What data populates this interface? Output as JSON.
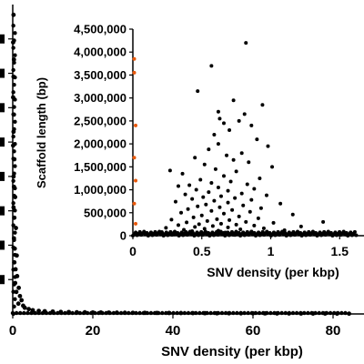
{
  "chart_data": [
    {
      "type": "scatter",
      "panel": "main",
      "xlabel": "SNV density (per kbp)",
      "ylabel": "",
      "xlim": [
        0,
        85
      ],
      "ylim": [
        0,
        4500000
      ],
      "x_ticks": [
        0,
        20,
        40,
        60,
        80
      ],
      "x_tick_labels": [
        "0",
        "20",
        "40",
        "60",
        "80"
      ],
      "grid": false,
      "colors": {
        "points": "#000000"
      },
      "series": [
        {
          "values": [
            [
              0.2,
              4350000
            ],
            [
              0.1,
              3950000
            ],
            [
              0.3,
              3700000
            ],
            [
              0.2,
              3450000
            ],
            [
              0.1,
              3150000
            ],
            [
              0.3,
              2900000
            ],
            [
              0.2,
              2650000
            ],
            [
              0.1,
              2450000
            ],
            [
              0.4,
              2250000
            ],
            [
              0.2,
              2000000
            ],
            [
              0.3,
              1850000
            ],
            [
              0.6,
              1700000
            ],
            [
              0.2,
              1550000
            ],
            [
              0.4,
              1400000
            ],
            [
              0.8,
              1250000
            ],
            [
              0.3,
              1100000
            ],
            [
              0.5,
              950000
            ],
            [
              1.0,
              850000
            ],
            [
              0.4,
              750000
            ],
            [
              0.7,
              650000
            ],
            [
              1.1,
              550000
            ],
            [
              0.6,
              450000
            ],
            [
              1.5,
              380000
            ],
            [
              0.9,
              320000
            ],
            [
              1.8,
              260000
            ],
            [
              2.2,
              200000
            ],
            [
              1.4,
              150000
            ],
            [
              2.6,
              120000
            ],
            [
              3.0,
              90000
            ],
            [
              4.0,
              70000
            ],
            [
              5.0,
              55000
            ],
            [
              6.5,
              45000
            ],
            [
              8.0,
              40000
            ],
            [
              10,
              35000
            ],
            [
              12,
              30000
            ],
            [
              14,
              28000
            ],
            [
              16,
              25000
            ],
            [
              18,
              24000
            ],
            [
              20,
              22000
            ],
            [
              22,
              21000
            ],
            [
              24,
              20000
            ],
            [
              26,
              19000
            ],
            [
              28,
              18000
            ],
            [
              30,
              17000
            ],
            [
              33,
              16000
            ],
            [
              36,
              15000
            ],
            [
              39,
              14000
            ],
            [
              42,
              13000
            ],
            [
              45,
              12000
            ],
            [
              48,
              11000
            ],
            [
              51,
              10000
            ],
            [
              54,
              9500
            ],
            [
              57,
              9000
            ],
            [
              60,
              8500
            ],
            [
              63,
              8000
            ],
            [
              66,
              7500
            ],
            [
              69,
              7000
            ],
            [
              72,
              6500
            ],
            [
              75,
              6000
            ],
            [
              78,
              5500
            ],
            [
              81,
              5000
            ],
            [
              84,
              4500
            ]
          ]
        }
      ]
    },
    {
      "type": "scatter",
      "panel": "inset",
      "xlabel": "SNV density (per kbp)",
      "ylabel": "Scaffold length (bp)",
      "xlim": [
        0,
        1.65
      ],
      "ylim": [
        0,
        4500000
      ],
      "x_ticks": [
        0,
        0.5,
        1,
        1.5
      ],
      "x_tick_labels": [
        "0",
        "0.5",
        "1",
        "1.5"
      ],
      "y_ticks": [
        0,
        500000,
        1000000,
        1500000,
        2000000,
        2500000,
        3000000,
        3500000,
        4000000,
        4500000
      ],
      "y_tick_labels": [
        "0",
        "500,000",
        "1,000,000",
        "1,500,000",
        "2,000,000",
        "2,500,000",
        "3,000,000",
        "3,500,000",
        "4,000,000",
        "4,500,000"
      ],
      "grid": false,
      "colors": {
        "points": "#000000",
        "highlight_points": "#e8590c"
      },
      "series": [
        {
          "values": [
            [
              0.82,
              4200000
            ],
            [
              0.57,
              3700000
            ],
            [
              0.47,
              3150000
            ],
            [
              0.73,
              2950000
            ],
            [
              0.94,
              2850000
            ],
            [
              0.62,
              2700000
            ],
            [
              0.81,
              2650000
            ],
            [
              0.63,
              2550000
            ],
            [
              0.77,
              2500000
            ],
            [
              0.66,
              2450000
            ],
            [
              0.86,
              2400000
            ],
            [
              0.7,
              2300000
            ],
            [
              0.59,
              2200000
            ],
            [
              0.9,
              2100000
            ],
            [
              0.62,
              2000000
            ],
            [
              0.98,
              1950000
            ],
            [
              0.55,
              1880000
            ],
            [
              0.79,
              1800000
            ],
            [
              0.68,
              1750000
            ],
            [
              0.45,
              1700000
            ],
            [
              0.73,
              1650000
            ],
            [
              0.84,
              1600000
            ],
            [
              0.52,
              1550000
            ],
            [
              1.01,
              1500000
            ],
            [
              0.6,
              1450000
            ],
            [
              0.27,
              1420000
            ],
            [
              0.75,
              1400000
            ],
            [
              0.36,
              1350000
            ],
            [
              0.66,
              1300000
            ],
            [
              0.92,
              1250000
            ],
            [
              0.49,
              1220000
            ],
            [
              0.71,
              1180000
            ],
            [
              0.57,
              1150000
            ],
            [
              0.83,
              1120000
            ],
            [
              0.41,
              1100000
            ],
            [
              1.38,
              300000
            ],
            [
              0.33,
              1080000
            ],
            [
              0.62,
              1050000
            ],
            [
              0.88,
              1020000
            ],
            [
              0.46,
              1000000
            ],
            [
              0.69,
              980000
            ],
            [
              0.55,
              950000
            ],
            [
              0.79,
              920000
            ],
            [
              0.38,
              900000
            ],
            [
              0.97,
              880000
            ],
            [
              0.64,
              860000
            ],
            [
              0.51,
              840000
            ],
            [
              0.74,
              820000
            ],
            [
              0.43,
              800000
            ],
            [
              0.86,
              780000
            ],
            [
              0.59,
              760000
            ],
            [
              0.31,
              740000
            ],
            [
              0.69,
              720000
            ],
            [
              1.07,
              700000
            ],
            [
              0.53,
              680000
            ],
            [
              0.8,
              660000
            ],
            [
              0.47,
              640000
            ],
            [
              0.63,
              620000
            ],
            [
              0.93,
              600000
            ],
            [
              0.4,
              580000
            ],
            [
              0.72,
              560000
            ],
            [
              0.57,
              540000
            ],
            [
              0.85,
              520000
            ],
            [
              0.35,
              500000
            ],
            [
              0.66,
              480000
            ],
            [
              1.16,
              460000
            ],
            [
              0.5,
              440000
            ],
            [
              0.77,
              420000
            ],
            [
              0.44,
              400000
            ],
            [
              0.91,
              380000
            ],
            [
              0.61,
              360000
            ],
            [
              0.28,
              350000
            ],
            [
              0.7,
              340000
            ],
            [
              0.54,
              320000
            ],
            [
              0.82,
              300000
            ],
            [
              0.39,
              290000
            ],
            [
              1.02,
              280000
            ],
            [
              0.64,
              260000
            ],
            [
              0.48,
              250000
            ],
            [
              0.75,
              240000
            ],
            [
              0.33,
              230000
            ],
            [
              0.88,
              220000
            ],
            [
              0.58,
              210000
            ],
            [
              1.22,
              200000
            ],
            [
              0.45,
              190000
            ],
            [
              0.69,
              180000
            ],
            [
              0.24,
              170000
            ],
            [
              0.95,
              160000
            ],
            [
              0.52,
              150000
            ],
            [
              0.78,
              140000
            ],
            [
              0.37,
              130000
            ],
            [
              1.1,
              120000
            ],
            [
              0.62,
              110000
            ],
            [
              0.43,
              100000
            ],
            [
              0.86,
              90000
            ],
            [
              0.21,
              80000
            ],
            [
              0.67,
              70000
            ],
            [
              1.3,
              60000
            ],
            [
              0.55,
              50000
            ],
            [
              0.99,
              40000
            ],
            [
              1.45,
              30000
            ],
            [
              0.3,
              25000
            ],
            [
              1.55,
              20000
            ],
            [
              0.74,
              15000
            ],
            [
              1.62,
              10000
            ]
          ]
        },
        {
          "values": [
            [
              0.01,
              3850000
            ],
            [
              0.01,
              3550000
            ],
            [
              0.02,
              2400000
            ],
            [
              0.01,
              1700000
            ],
            [
              0.02,
              1200000
            ],
            [
              0.01,
              700000
            ],
            [
              0.02,
              260000
            ]
          ]
        }
      ]
    }
  ]
}
